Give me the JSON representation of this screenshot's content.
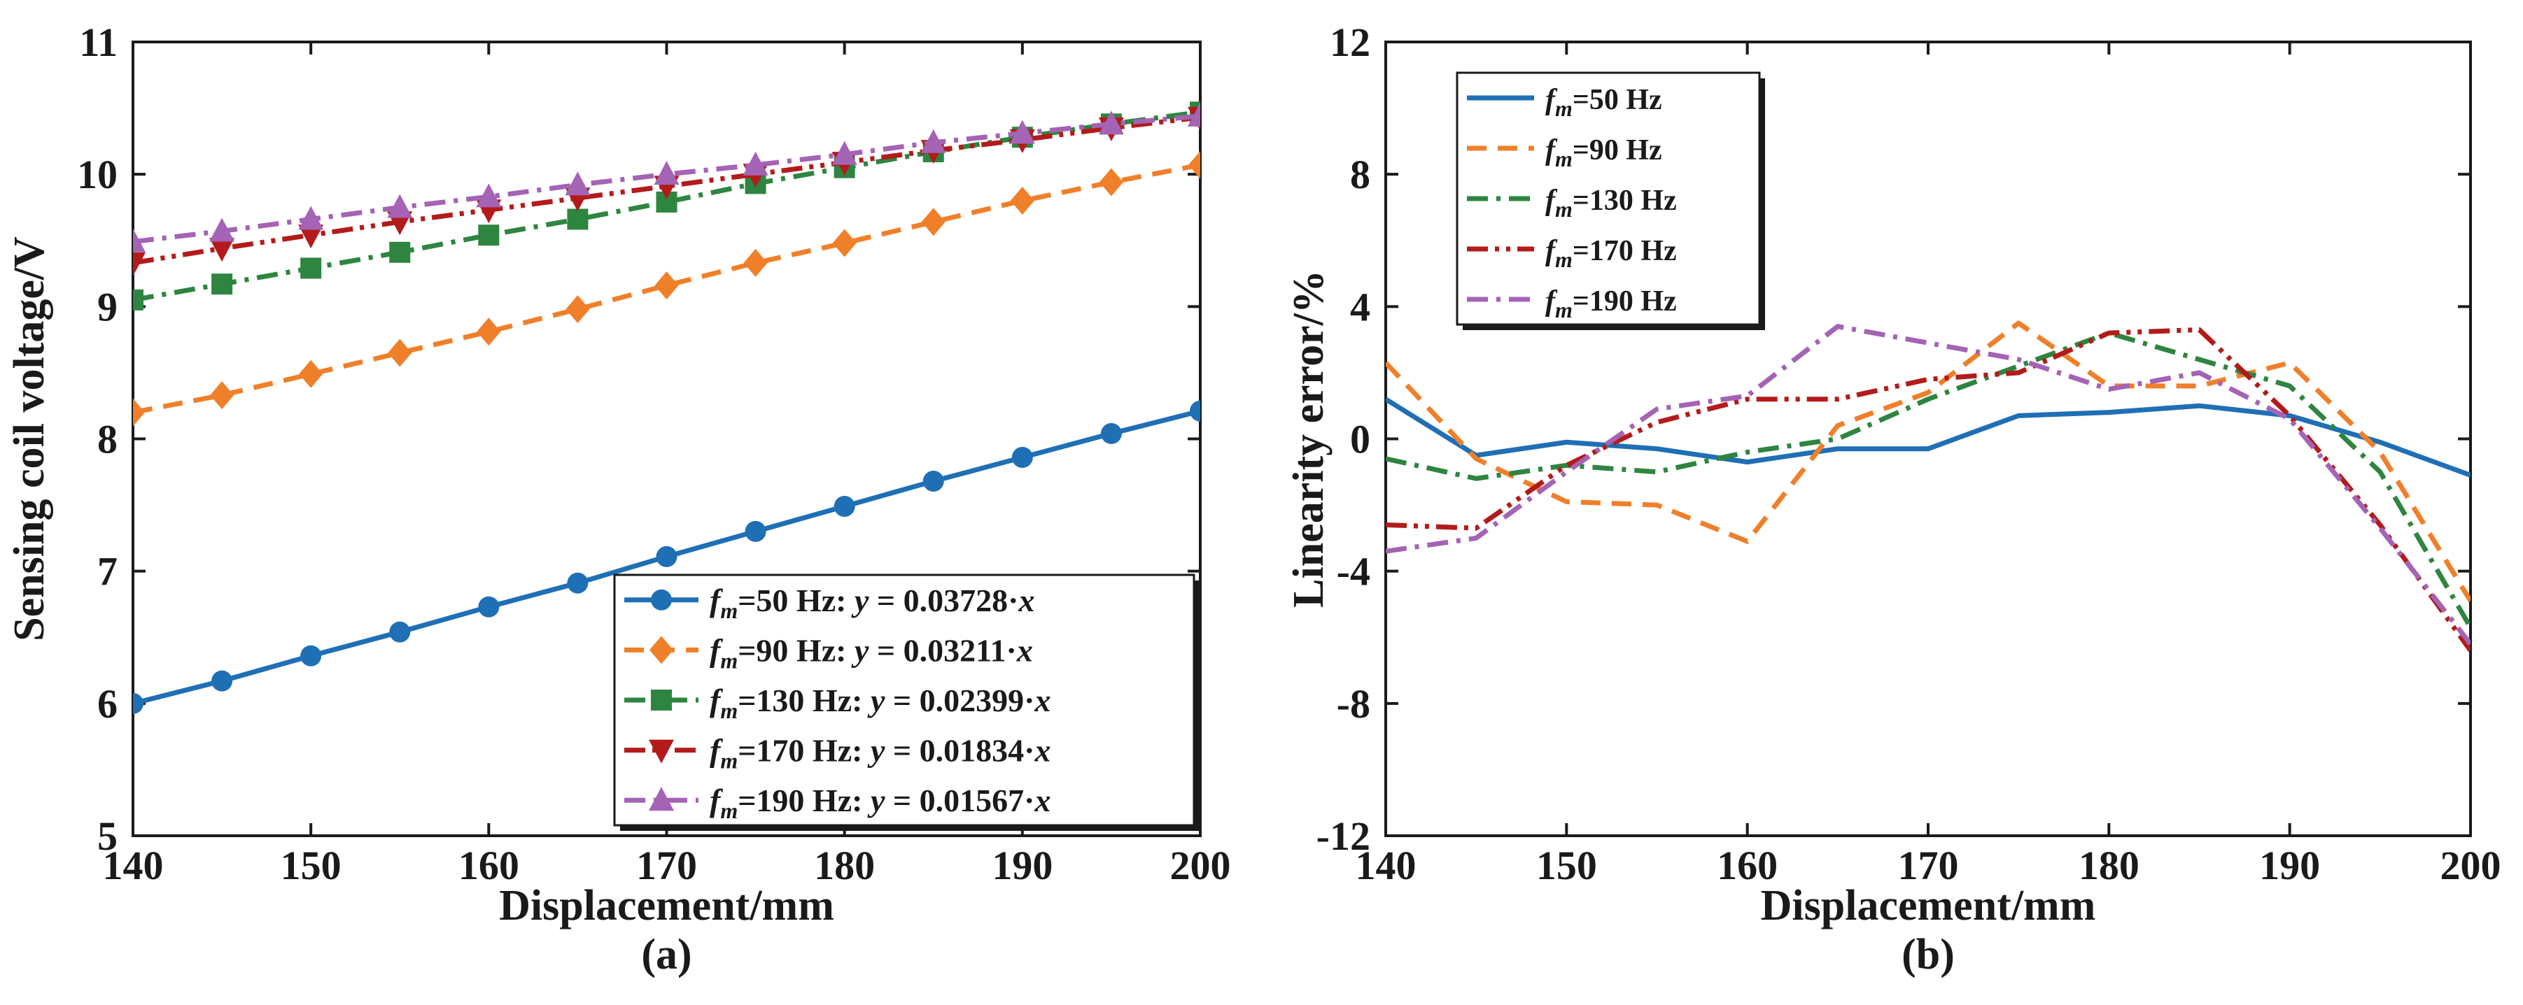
{
  "figure": {
    "panels": [
      "(a)",
      "(b)"
    ]
  },
  "chart_data": [
    {
      "type": "line",
      "panel_label": "(a)",
      "xlabel": "Displacement/mm",
      "ylabel": "Sensing coil voltage/V",
      "xlim": [
        140,
        200
      ],
      "ylim": [
        5,
        11
      ],
      "x_ticks": [
        140,
        150,
        160,
        170,
        180,
        190,
        200
      ],
      "y_ticks": [
        5,
        6,
        7,
        8,
        9,
        10,
        11
      ],
      "x": [
        140,
        145,
        150,
        155,
        160,
        165,
        170,
        175,
        180,
        185,
        190,
        195,
        200
      ],
      "legend_position": "bottom-right",
      "series": [
        {
          "name": "f_m=50 Hz",
          "legend_sub": "m",
          "legend_pre": "=50 Hz: ",
          "legend_eq_y": "y",
          "legend_eq_mid": " = 0.03728·",
          "legend_eq_x": "x",
          "color": "#1f6fb5",
          "dash": "solid",
          "marker": "circle",
          "values": [
            6.0,
            6.17,
            6.36,
            6.54,
            6.73,
            6.91,
            7.11,
            7.3,
            7.49,
            7.68,
            7.86,
            8.04,
            8.21
          ]
        },
        {
          "name": "f_m=90 Hz",
          "legend_sub": "m",
          "legend_pre": "=90 Hz: ",
          "legend_eq_y": "y",
          "legend_eq_mid": " = 0.03211·",
          "legend_eq_x": "x",
          "color": "#f07f2a",
          "dash": "dashed",
          "marker": "diamond",
          "values": [
            8.2,
            8.33,
            8.49,
            8.65,
            8.81,
            8.98,
            9.16,
            9.33,
            9.48,
            9.64,
            9.8,
            9.94,
            10.07
          ]
        },
        {
          "name": "f_m=130 Hz",
          "legend_sub": "m",
          "legend_pre": "=130 Hz: ",
          "legend_eq_y": "y",
          "legend_eq_mid": " = 0.02399·",
          "legend_eq_x": "x",
          "color": "#2e8540",
          "dash": "dashdot",
          "marker": "square",
          "values": [
            9.05,
            9.17,
            9.29,
            9.41,
            9.54,
            9.66,
            9.79,
            9.93,
            10.05,
            10.17,
            10.28,
            10.38,
            10.47
          ]
        },
        {
          "name": "f_m=170 Hz",
          "legend_sub": "m",
          "legend_pre": "=170 Hz: ",
          "legend_eq_y": "y",
          "legend_eq_mid": " = 0.01834·",
          "legend_eq_x": "x",
          "color": "#b31b1b",
          "dash": "dashdotdot",
          "marker": "triangle-down",
          "values": [
            9.33,
            9.44,
            9.54,
            9.64,
            9.73,
            9.82,
            9.91,
            10.0,
            10.09,
            10.18,
            10.26,
            10.35,
            10.43
          ]
        },
        {
          "name": "f_m=190 Hz",
          "legend_sub": "m",
          "legend_pre": "=190 Hz: ",
          "legend_eq_y": "y",
          "legend_eq_mid": " = 0.01567·",
          "legend_eq_x": "x",
          "color": "#a463b5",
          "dash": "dashdot",
          "marker": "triangle-up",
          "values": [
            9.49,
            9.57,
            9.66,
            9.75,
            9.83,
            9.92,
            10.0,
            10.07,
            10.15,
            10.24,
            10.31,
            10.38,
            10.44
          ]
        }
      ]
    },
    {
      "type": "line",
      "panel_label": "(b)",
      "xlabel": "Displacement/mm",
      "ylabel": "Linearity error/%",
      "xlim": [
        140,
        200
      ],
      "ylim": [
        -12,
        12
      ],
      "x_ticks": [
        140,
        150,
        160,
        170,
        180,
        190,
        200
      ],
      "y_ticks": [
        -12,
        -8,
        -4,
        0,
        4,
        8,
        12
      ],
      "x": [
        140,
        145,
        150,
        155,
        160,
        165,
        170,
        175,
        180,
        185,
        190,
        195,
        200
      ],
      "legend_position": "top-left",
      "series": [
        {
          "name": "f_m=50 Hz",
          "legend_sub": "m",
          "legend_pre": "=50 Hz",
          "color": "#1f6fb5",
          "dash": "solid",
          "values": [
            1.2,
            -0.5,
            -0.1,
            -0.3,
            -0.7,
            -0.3,
            -0.3,
            0.7,
            0.8,
            1.0,
            0.7,
            -0.1,
            -1.1
          ]
        },
        {
          "name": "f_m=90 Hz",
          "legend_sub": "m",
          "legend_pre": "=90 Hz",
          "color": "#f07f2a",
          "dash": "dashed",
          "values": [
            2.3,
            -0.6,
            -1.9,
            -2.0,
            -3.1,
            0.4,
            1.4,
            3.5,
            1.6,
            1.6,
            2.3,
            -0.4,
            -4.9
          ]
        },
        {
          "name": "f_m=130 Hz",
          "legend_sub": "m",
          "legend_pre": "=130 Hz",
          "color": "#2e8540",
          "dash": "dashdot",
          "values": [
            -0.6,
            -1.2,
            -0.8,
            -1.0,
            -0.4,
            0.0,
            1.2,
            2.2,
            3.2,
            2.4,
            1.6,
            -1.0,
            -5.7
          ]
        },
        {
          "name": "f_m=170 Hz",
          "legend_sub": "m",
          "legend_pre": "=170 Hz",
          "color": "#b31b1b",
          "dash": "dashdotdot",
          "values": [
            -2.6,
            -2.7,
            -0.8,
            0.5,
            1.2,
            1.2,
            1.8,
            2.0,
            3.2,
            3.3,
            0.7,
            -2.6,
            -6.4
          ]
        },
        {
          "name": "f_m=190 Hz",
          "legend_sub": "m",
          "legend_pre": "=190 Hz",
          "color": "#a463b5",
          "dash": "dashdot",
          "values": [
            -3.4,
            -3.0,
            -1.0,
            0.9,
            1.3,
            3.4,
            2.9,
            2.4,
            1.5,
            2.0,
            0.6,
            -2.7,
            -6.2
          ]
        }
      ]
    }
  ]
}
